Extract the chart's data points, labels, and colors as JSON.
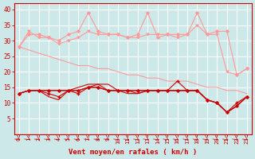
{
  "x": [
    0,
    1,
    2,
    3,
    4,
    5,
    6,
    7,
    8,
    9,
    10,
    11,
    12,
    13,
    14,
    15,
    16,
    17,
    18,
    19,
    20,
    21,
    22,
    23
  ],
  "light_pink_line1": [
    28,
    32,
    32,
    31,
    30,
    32,
    33,
    39,
    33,
    32,
    32,
    31,
    32,
    39,
    31,
    32,
    32,
    32,
    39,
    32,
    33,
    33,
    19,
    21
  ],
  "light_pink_line2": [
    28,
    33,
    31,
    31,
    29,
    30,
    31,
    33,
    32,
    32,
    32,
    31,
    31,
    32,
    32,
    32,
    31,
    32,
    35,
    32,
    32,
    20,
    19,
    21
  ],
  "light_pink_diagonal": [
    28,
    27,
    26,
    25,
    24,
    23,
    22,
    22,
    21,
    21,
    20,
    19,
    19,
    18,
    18,
    17,
    17,
    17,
    16,
    15,
    15,
    14,
    14,
    13
  ],
  "dark_red_line1": [
    13,
    14,
    14,
    14,
    14,
    14,
    14,
    15,
    15,
    14,
    14,
    14,
    14,
    14,
    14,
    14,
    14,
    14,
    14,
    11,
    10,
    7,
    9,
    12
  ],
  "dark_red_line2": [
    13,
    14,
    14,
    13,
    12,
    14,
    13,
    15,
    15,
    14,
    14,
    14,
    14,
    14,
    14,
    14,
    17,
    14,
    14,
    11,
    10,
    7,
    10,
    12
  ],
  "dark_red_line3": [
    13,
    14,
    14,
    14,
    14,
    14,
    14,
    15,
    16,
    16,
    14,
    14,
    13,
    14,
    14,
    14,
    14,
    14,
    14,
    11,
    10,
    7,
    9,
    12
  ],
  "dark_red_line4": [
    13,
    14,
    14,
    12,
    11,
    14,
    15,
    16,
    16,
    14,
    14,
    13,
    13,
    14,
    14,
    14,
    14,
    14,
    14,
    11,
    10,
    7,
    9,
    12
  ],
  "background_color": "#cce8e8",
  "grid_color": "white",
  "light_pink_color": "#ff9999",
  "dark_red_color": "#cc0000",
  "xlabel": "Vent moyen/en rafales ( km/h )",
  "ylim": [
    0,
    42
  ],
  "yticks": [
    5,
    10,
    15,
    20,
    25,
    30,
    35,
    40
  ],
  "label_fontsize": 6.5
}
